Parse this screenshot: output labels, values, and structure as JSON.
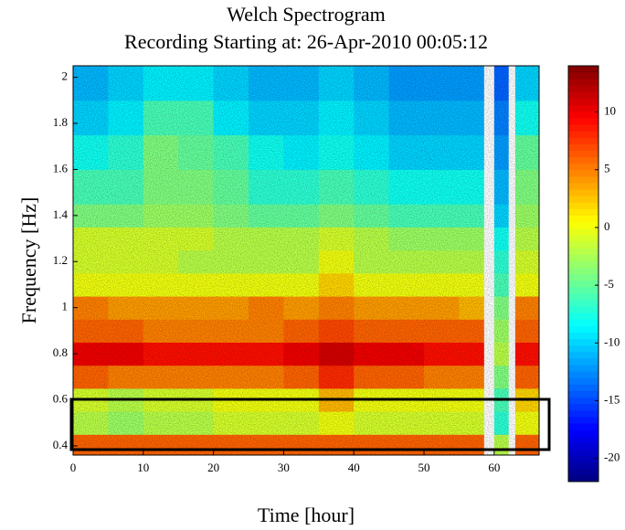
{
  "chart_data": {
    "type": "spectrogram",
    "title": [
      "Welch Spectrogram",
      "Recording Starting at: 26-Apr-2010 00:05:12"
    ],
    "xlabel": "Time [hour]",
    "ylabel": "Frequency [Hz]",
    "xlim": [
      0,
      66.4
    ],
    "ylim": [
      0.36,
      2.05
    ],
    "xticks": [
      0,
      10,
      20,
      30,
      40,
      50,
      60
    ],
    "yticks": [
      0.4,
      0.6,
      0.8,
      1,
      1.2,
      1.4,
      1.6,
      1.8,
      2
    ],
    "xbins": [
      0,
      5,
      10,
      15,
      20,
      25,
      30,
      35,
      40,
      45,
      50,
      55,
      58.5,
      60,
      62,
      63,
      66.4
    ],
    "ybins": [
      0.36,
      0.45,
      0.55,
      0.65,
      0.75,
      0.85,
      0.95,
      1.05,
      1.15,
      1.25,
      1.35,
      1.45,
      1.6,
      1.75,
      1.9,
      2.05
    ],
    "values": [
      [
        6,
        6,
        6,
        6,
        6,
        6,
        6,
        6,
        6,
        6,
        6,
        6,
        null,
        -2,
        null,
        6
      ],
      [
        -2,
        -3,
        -2,
        -2,
        -1,
        -1,
        -1,
        0,
        -1,
        -1,
        -1,
        -1,
        null,
        -7,
        null,
        0
      ],
      [
        -1,
        -2,
        -1,
        -1,
        0,
        0,
        0,
        3,
        0,
        0,
        0,
        0,
        null,
        -6,
        null,
        2
      ],
      [
        6,
        5,
        5,
        5,
        5,
        5,
        6,
        8,
        6,
        6,
        5,
        5,
        null,
        -4,
        null,
        6
      ],
      [
        10,
        10,
        9,
        9,
        9,
        9,
        10,
        11,
        10,
        10,
        9,
        9,
        null,
        -2,
        null,
        9
      ],
      [
        6,
        6,
        5,
        5,
        5,
        5,
        6,
        7,
        6,
        6,
        6,
        6,
        null,
        -3,
        null,
        6
      ],
      [
        5,
        4,
        4,
        4,
        4,
        5,
        4,
        5,
        4,
        4,
        4,
        3,
        null,
        -4,
        null,
        5
      ],
      [
        0,
        0,
        0,
        0,
        0,
        0,
        0,
        2,
        0,
        0,
        0,
        0,
        null,
        -6,
        null,
        0
      ],
      [
        -1,
        -1,
        -1,
        -2,
        -2,
        -2,
        -2,
        0,
        -2,
        -2,
        -2,
        -2,
        null,
        -7,
        null,
        -1
      ],
      [
        -1,
        -1,
        -1,
        -1,
        -2,
        -2,
        -2,
        -1,
        -2,
        -3,
        -3,
        -3,
        null,
        -8,
        null,
        -2
      ],
      [
        -4,
        -4,
        -3,
        -3,
        -4,
        -5,
        -5,
        -4,
        -5,
        -6,
        -6,
        -6,
        null,
        -10,
        null,
        -3
      ],
      [
        -6,
        -6,
        -4,
        -4,
        -5,
        -7,
        -7,
        -6,
        -7,
        -8,
        -8,
        -8,
        null,
        -11,
        null,
        -4
      ],
      [
        -8,
        -7,
        -4,
        -5,
        -6,
        -8,
        -9,
        -8,
        -9,
        -10,
        -10,
        -10,
        null,
        -12,
        null,
        -5
      ],
      [
        -10,
        -9,
        -6,
        -6,
        -9,
        -10,
        -10,
        -9,
        -10,
        -11,
        -11,
        -11,
        null,
        -13,
        null,
        -8
      ],
      [
        -11,
        -10,
        -9,
        -9,
        -10,
        -11,
        -11,
        -10,
        -11,
        -12,
        -12,
        -12,
        null,
        -14,
        null,
        -10
      ]
    ],
    "colormap": "jet",
    "clim": [
      -22,
      14
    ],
    "colorbar_ticks": [
      -20,
      -15,
      -10,
      -5,
      0,
      5,
      10
    ]
  }
}
